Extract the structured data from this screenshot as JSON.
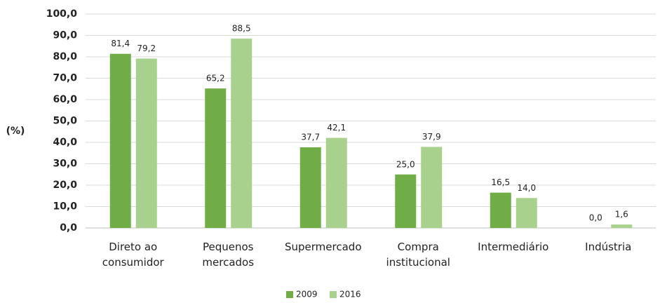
{
  "chart_data": {
    "type": "bar",
    "y_label": "(%)",
    "categories": [
      "Direto ao\nconsumidor",
      "Pequenos\nmercados",
      "Supermercado",
      "Compra\ninstitucional",
      "Intermediário",
      "Indústria"
    ],
    "series": [
      {
        "name": "2009",
        "color": "#70ad47",
        "values": [
          81.4,
          65.2,
          37.7,
          25.0,
          16.5,
          0.0
        ],
        "value_labels": [
          "81,4",
          "65,2",
          "37,7",
          "25,0",
          "16,5",
          "0,0"
        ]
      },
      {
        "name": "2016",
        "color": "#a9d18e",
        "values": [
          79.2,
          88.5,
          42.1,
          37.9,
          14.0,
          1.6
        ],
        "value_labels": [
          "79,2",
          "88,5",
          "42,1",
          "37,9",
          "14,0",
          "1,6"
        ]
      }
    ],
    "ylim": [
      0,
      100
    ],
    "yticks": [
      {
        "value": 0,
        "label": "0,0"
      },
      {
        "value": 10,
        "label": "10,0"
      },
      {
        "value": 20,
        "label": "20,0"
      },
      {
        "value": 30,
        "label": "30,0"
      },
      {
        "value": 40,
        "label": "40,0"
      },
      {
        "value": 50,
        "label": "50,0"
      },
      {
        "value": 60,
        "label": "60,0"
      },
      {
        "value": 70,
        "label": "70,0"
      },
      {
        "value": 80,
        "label": "80,0"
      },
      {
        "value": 90,
        "label": "90,0"
      },
      {
        "value": 100,
        "label": "100,0"
      }
    ],
    "grid": true,
    "legend": "bottom"
  }
}
